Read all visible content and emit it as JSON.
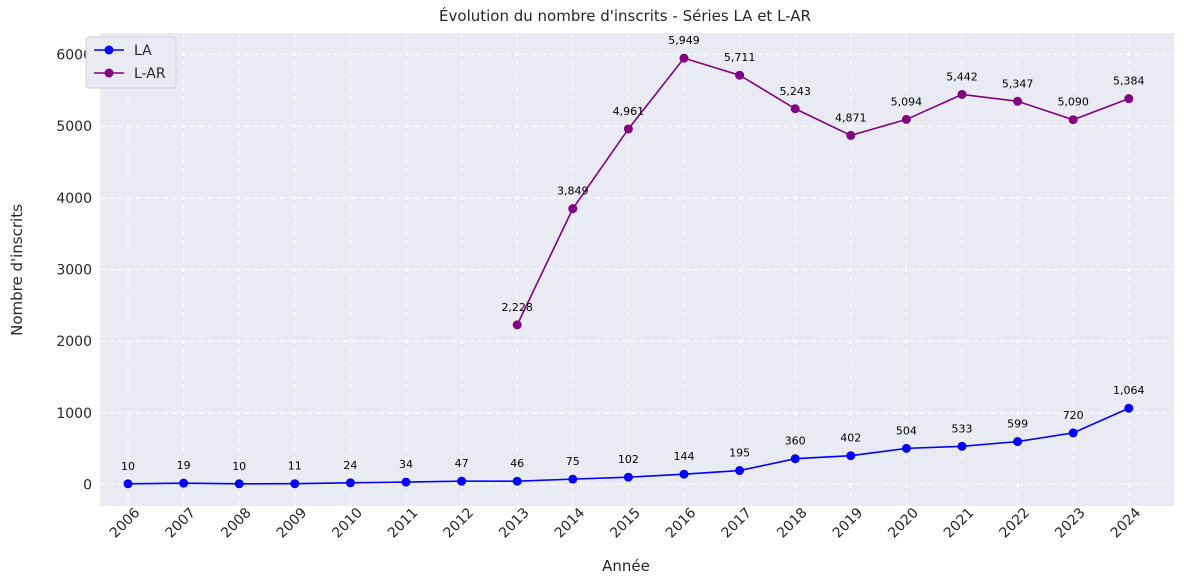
{
  "chart_data": {
    "type": "line",
    "title": "Évolution du nombre d'inscrits - Séries LA et L-AR",
    "xlabel": "Année",
    "ylabel": "Nombre d'inscrits",
    "x": [
      "2006",
      "2007",
      "2008",
      "2009",
      "2010",
      "2011",
      "2012",
      "2013",
      "2014",
      "2015",
      "2016",
      "2017",
      "2018",
      "2019",
      "2020",
      "2021",
      "2022",
      "2023",
      "2024"
    ],
    "ylim": [
      -300,
      6300
    ],
    "yticks": [
      0,
      1000,
      2000,
      3000,
      4000,
      5000,
      6000
    ],
    "grid": true,
    "legend_position": "top-left",
    "series": [
      {
        "name": "LA",
        "color": "#0000ff",
        "values": [
          10,
          19,
          10,
          11,
          24,
          34,
          47,
          46,
          75,
          102,
          144,
          195,
          360,
          402,
          504,
          533,
          599,
          720,
          1064
        ],
        "labels": [
          "10",
          "19",
          "10",
          "11",
          "24",
          "34",
          "47",
          "46",
          "75",
          "102",
          "144",
          "195",
          "360",
          "402",
          "504",
          "533",
          "599",
          "720",
          "1,064"
        ]
      },
      {
        "name": "L-AR",
        "color": "#800080",
        "values": [
          null,
          null,
          null,
          null,
          null,
          null,
          null,
          2228,
          3849,
          4961,
          5949,
          5711,
          5243,
          4871,
          5094,
          5442,
          5347,
          5090,
          5384
        ],
        "labels": [
          null,
          null,
          null,
          null,
          null,
          null,
          null,
          "2,228",
          "3,849",
          "4,961",
          "5,949",
          "5,711",
          "5,243",
          "4,871",
          "5,094",
          "5,442",
          "5,347",
          "5,090",
          "5,384"
        ]
      }
    ]
  },
  "colors": {
    "plot_background": "#eaeaf2",
    "grid": "#ffffff",
    "text": "#262626"
  }
}
